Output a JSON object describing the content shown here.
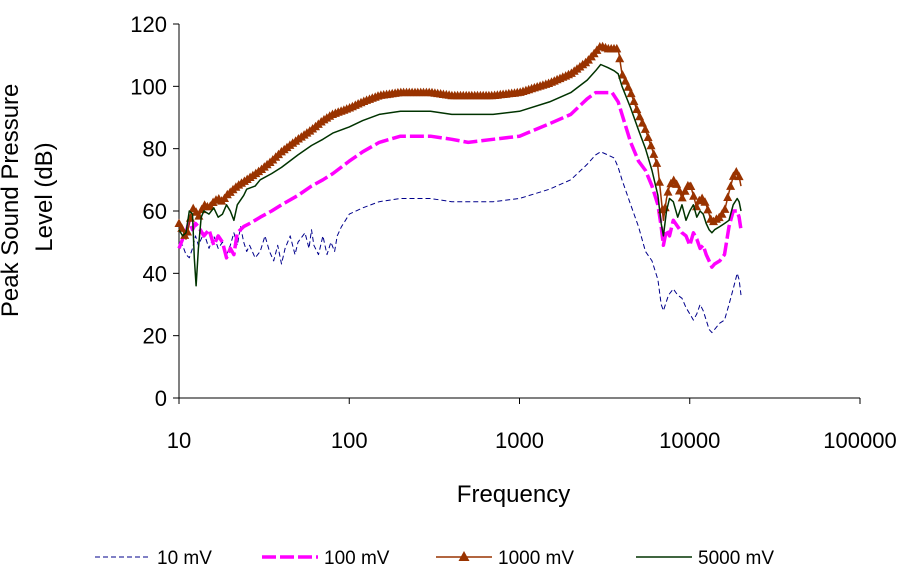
{
  "chart_data": {
    "type": "line",
    "title": "",
    "xlabel": "Frequency",
    "ylabel_lines": [
      "Peak Sound Pressure",
      "Level (dB)"
    ],
    "x_scale": "log",
    "xlim": [
      10,
      100000
    ],
    "ylim": [
      0,
      120
    ],
    "x_ticks": [
      10,
      100,
      1000,
      10000,
      100000
    ],
    "x_tick_labels": [
      "10",
      "100",
      "1000",
      "10000",
      "100000"
    ],
    "y_ticks": [
      0,
      20,
      40,
      60,
      80,
      100,
      120
    ],
    "y_tick_labels": [
      "0",
      "20",
      "40",
      "60",
      "80",
      "100",
      "120"
    ],
    "grid": false,
    "legend_position": "bottom",
    "series": [
      {
        "name": "10 mV",
        "color": "#00008b",
        "style": "dashed-thin",
        "points": [
          [
            10,
            50
          ],
          [
            10.5,
            49
          ],
          [
            11,
            46
          ],
          [
            11.5,
            45
          ],
          [
            12,
            48
          ],
          [
            12.5,
            52
          ],
          [
            13,
            49
          ],
          [
            14,
            53
          ],
          [
            15,
            48
          ],
          [
            16,
            52
          ],
          [
            17,
            48
          ],
          [
            18,
            50
          ],
          [
            19,
            46
          ],
          [
            20,
            49
          ],
          [
            21,
            53
          ],
          [
            22,
            49
          ],
          [
            23,
            55
          ],
          [
            24,
            50
          ],
          [
            25,
            47
          ],
          [
            26,
            49
          ],
          [
            28,
            45
          ],
          [
            30,
            47
          ],
          [
            32,
            52
          ],
          [
            34,
            47
          ],
          [
            36,
            44
          ],
          [
            38,
            49
          ],
          [
            40,
            43
          ],
          [
            42,
            48
          ],
          [
            45,
            52
          ],
          [
            48,
            46
          ],
          [
            50,
            50
          ],
          [
            55,
            53
          ],
          [
            58,
            48
          ],
          [
            60,
            54
          ],
          [
            62,
            49
          ],
          [
            66,
            46
          ],
          [
            70,
            52
          ],
          [
            74,
            46
          ],
          [
            78,
            50
          ],
          [
            82,
            47
          ],
          [
            85,
            52
          ],
          [
            90,
            55
          ],
          [
            95,
            57
          ],
          [
            100,
            59
          ],
          [
            120,
            61
          ],
          [
            150,
            63
          ],
          [
            200,
            64
          ],
          [
            300,
            64
          ],
          [
            400,
            63
          ],
          [
            500,
            63
          ],
          [
            700,
            63
          ],
          [
            1000,
            64
          ],
          [
            1500,
            67
          ],
          [
            2000,
            70
          ],
          [
            2500,
            75
          ],
          [
            2800,
            78
          ],
          [
            3000,
            79
          ],
          [
            3300,
            78
          ],
          [
            3600,
            77
          ],
          [
            3800,
            74
          ],
          [
            4000,
            70
          ],
          [
            4500,
            62
          ],
          [
            5000,
            55
          ],
          [
            5500,
            47
          ],
          [
            6000,
            44
          ],
          [
            6500,
            38
          ],
          [
            6800,
            30
          ],
          [
            7000,
            28
          ],
          [
            7500,
            33
          ],
          [
            8000,
            35
          ],
          [
            8500,
            33
          ],
          [
            9000,
            32
          ],
          [
            9500,
            29
          ],
          [
            10000,
            27
          ],
          [
            10500,
            25
          ],
          [
            11000,
            27
          ],
          [
            11500,
            30
          ],
          [
            12000,
            28
          ],
          [
            12500,
            25
          ],
          [
            13000,
            22
          ],
          [
            13500,
            21
          ],
          [
            14000,
            22
          ],
          [
            15000,
            24
          ],
          [
            16000,
            25
          ],
          [
            17000,
            30
          ],
          [
            18000,
            35
          ],
          [
            19000,
            40
          ],
          [
            19500,
            38
          ],
          [
            20000,
            33
          ]
        ]
      },
      {
        "name": "100 mV",
        "color": "#ff00ff",
        "style": "dashed-thick",
        "points": [
          [
            10,
            48
          ],
          [
            10.5,
            51
          ],
          [
            11,
            53
          ],
          [
            11.5,
            57
          ],
          [
            12,
            54
          ],
          [
            12.5,
            56
          ],
          [
            13,
            55
          ],
          [
            14,
            52
          ],
          [
            15,
            54
          ],
          [
            16,
            49
          ],
          [
            17,
            52
          ],
          [
            18,
            50
          ],
          [
            19,
            45
          ],
          [
            20,
            48
          ],
          [
            21,
            46
          ],
          [
            22,
            53
          ],
          [
            24,
            55
          ],
          [
            26,
            56
          ],
          [
            28,
            57
          ],
          [
            30,
            58
          ],
          [
            35,
            60
          ],
          [
            40,
            62
          ],
          [
            50,
            65
          ],
          [
            60,
            68
          ],
          [
            70,
            70
          ],
          [
            80,
            72
          ],
          [
            100,
            76
          ],
          [
            120,
            79
          ],
          [
            150,
            82
          ],
          [
            200,
            84
          ],
          [
            300,
            84
          ],
          [
            400,
            83
          ],
          [
            500,
            82
          ],
          [
            700,
            83
          ],
          [
            1000,
            84
          ],
          [
            1500,
            88
          ],
          [
            2000,
            91
          ],
          [
            2500,
            96
          ],
          [
            2800,
            98
          ],
          [
            3000,
            98
          ],
          [
            3500,
            98
          ],
          [
            3800,
            95
          ],
          [
            4000,
            91
          ],
          [
            4500,
            82
          ],
          [
            5000,
            76
          ],
          [
            5500,
            73
          ],
          [
            6000,
            68
          ],
          [
            6500,
            62
          ],
          [
            6800,
            55
          ],
          [
            7000,
            49
          ],
          [
            7300,
            54
          ],
          [
            7600,
            52
          ],
          [
            8000,
            57
          ],
          [
            8500,
            55
          ],
          [
            9000,
            53
          ],
          [
            9500,
            52
          ],
          [
            10000,
            49
          ],
          [
            10500,
            53
          ],
          [
            11000,
            51
          ],
          [
            11500,
            48
          ],
          [
            12000,
            49
          ],
          [
            12500,
            46
          ],
          [
            13000,
            44
          ],
          [
            13500,
            42
          ],
          [
            14000,
            43
          ],
          [
            15000,
            44
          ],
          [
            16000,
            46
          ],
          [
            17000,
            55
          ],
          [
            18000,
            60
          ],
          [
            19000,
            60
          ],
          [
            19500,
            58
          ],
          [
            20000,
            54
          ]
        ]
      },
      {
        "name": "1000 mV",
        "color": "#993300",
        "style": "solid-triangles",
        "points": [
          [
            10,
            56
          ],
          [
            10.5,
            54
          ],
          [
            11,
            51
          ],
          [
            11.5,
            56
          ],
          [
            12,
            61
          ],
          [
            12.5,
            60
          ],
          [
            13,
            58
          ],
          [
            14,
            62
          ],
          [
            15,
            61
          ],
          [
            16,
            63
          ],
          [
            17,
            64
          ],
          [
            18,
            63
          ],
          [
            19,
            65
          ],
          [
            20,
            66
          ],
          [
            22,
            68
          ],
          [
            25,
            70
          ],
          [
            30,
            73
          ],
          [
            35,
            76
          ],
          [
            40,
            79
          ],
          [
            50,
            83
          ],
          [
            60,
            86
          ],
          [
            70,
            89
          ],
          [
            80,
            91
          ],
          [
            100,
            93
          ],
          [
            120,
            95
          ],
          [
            150,
            97
          ],
          [
            200,
            98
          ],
          [
            300,
            98
          ],
          [
            400,
            97
          ],
          [
            500,
            97
          ],
          [
            700,
            97
          ],
          [
            1000,
            98
          ],
          [
            1500,
            101
          ],
          [
            2000,
            104
          ],
          [
            2500,
            108
          ],
          [
            2800,
            111
          ],
          [
            3000,
            113
          ],
          [
            3300,
            112
          ],
          [
            3600,
            112
          ],
          [
            3800,
            112
          ],
          [
            4000,
            104
          ],
          [
            4500,
            98
          ],
          [
            5000,
            91
          ],
          [
            5500,
            86
          ],
          [
            6000,
            80
          ],
          [
            6500,
            74
          ],
          [
            6800,
            64
          ],
          [
            7000,
            57
          ],
          [
            7300,
            64
          ],
          [
            7600,
            68
          ],
          [
            8000,
            70
          ],
          [
            8500,
            68
          ],
          [
            9000,
            64
          ],
          [
            9500,
            67
          ],
          [
            10000,
            69
          ],
          [
            10500,
            65
          ],
          [
            11000,
            61
          ],
          [
            11500,
            64
          ],
          [
            12000,
            64
          ],
          [
            12500,
            62
          ],
          [
            13000,
            59
          ],
          [
            13500,
            56
          ],
          [
            14000,
            57
          ],
          [
            15000,
            58
          ],
          [
            16000,
            60
          ],
          [
            17000,
            66
          ],
          [
            18000,
            71
          ],
          [
            19000,
            73
          ],
          [
            19500,
            71
          ],
          [
            20000,
            68
          ]
        ]
      },
      {
        "name": "5000 mV",
        "color": "#003300",
        "style": "solid-thin",
        "points": [
          [
            10,
            54
          ],
          [
            10.5,
            52
          ],
          [
            11,
            53
          ],
          [
            11.5,
            60
          ],
          [
            12,
            59
          ],
          [
            12.3,
            45
          ],
          [
            12.6,
            36
          ],
          [
            13,
            48
          ],
          [
            13.5,
            58
          ],
          [
            14,
            60
          ],
          [
            15,
            59
          ],
          [
            16,
            61
          ],
          [
            17,
            58
          ],
          [
            18,
            59
          ],
          [
            19,
            62
          ],
          [
            20,
            60
          ],
          [
            21,
            57
          ],
          [
            22,
            62
          ],
          [
            24,
            65
          ],
          [
            25,
            67
          ],
          [
            28,
            68
          ],
          [
            30,
            70
          ],
          [
            35,
            72
          ],
          [
            40,
            74
          ],
          [
            50,
            78
          ],
          [
            60,
            81
          ],
          [
            70,
            83
          ],
          [
            80,
            85
          ],
          [
            100,
            87
          ],
          [
            120,
            89
          ],
          [
            150,
            91
          ],
          [
            200,
            92
          ],
          [
            300,
            92
          ],
          [
            400,
            91
          ],
          [
            500,
            91
          ],
          [
            700,
            91
          ],
          [
            1000,
            92
          ],
          [
            1500,
            95
          ],
          [
            2000,
            98
          ],
          [
            2500,
            102
          ],
          [
            2800,
            105
          ],
          [
            3000,
            107
          ],
          [
            3300,
            106
          ],
          [
            3600,
            105
          ],
          [
            3800,
            104
          ],
          [
            4000,
            100
          ],
          [
            4500,
            93
          ],
          [
            5000,
            86
          ],
          [
            5500,
            80
          ],
          [
            6000,
            73
          ],
          [
            6500,
            65
          ],
          [
            6800,
            56
          ],
          [
            7000,
            52
          ],
          [
            7300,
            60
          ],
          [
            7600,
            64
          ],
          [
            8000,
            63
          ],
          [
            8500,
            58
          ],
          [
            9000,
            62
          ],
          [
            9500,
            57
          ],
          [
            10000,
            60
          ],
          [
            10500,
            62
          ],
          [
            11000,
            58
          ],
          [
            11500,
            60
          ],
          [
            12000,
            59
          ],
          [
            12500,
            56
          ],
          [
            13000,
            54
          ],
          [
            13500,
            53
          ],
          [
            14000,
            54
          ],
          [
            15000,
            55
          ],
          [
            16000,
            56
          ],
          [
            17000,
            57
          ],
          [
            18000,
            62
          ],
          [
            19000,
            64
          ],
          [
            19500,
            63
          ],
          [
            20000,
            60
          ]
        ]
      }
    ]
  }
}
